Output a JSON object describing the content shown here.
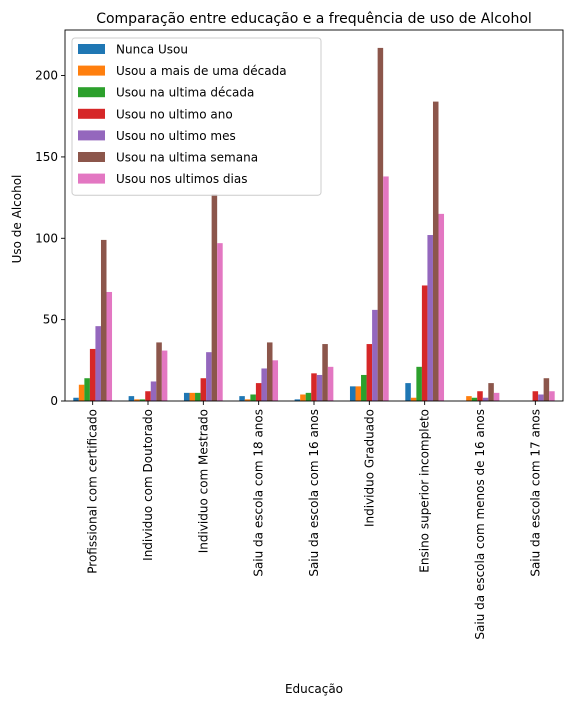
{
  "chart_data": {
    "type": "bar",
    "title": "Comparação entre educação e a frequência de uso de Alcohol",
    "xlabel": "Educação",
    "ylabel": "Uso de Alcohol",
    "ylim": [
      0,
      228
    ],
    "yticks": [
      0,
      50,
      100,
      150,
      200
    ],
    "grid": false,
    "legend_position": "top-left",
    "categories": [
      "Profissional com certificado",
      "Individuo com Doutorado",
      "Individuo com Mestrado",
      "Saiu da escola com 18 anos",
      "Saiu da escola com 16 anos",
      "Individuo Graduado",
      "Ensino superior incompleto",
      "Saiu da escola com menos de 16 anos",
      "Saiu da escola com 17 anos"
    ],
    "series": [
      {
        "name": "Nunca Usou",
        "color": "#1f77b4",
        "values": [
          2,
          3,
          5,
          3,
          1,
          9,
          11,
          0,
          0
        ]
      },
      {
        "name": "Usou a mais de uma década",
        "color": "#ff7f0e",
        "values": [
          10,
          1,
          5,
          1,
          4,
          9,
          2,
          3,
          0
        ]
      },
      {
        "name": "Usou na ultima década",
        "color": "#2ca02c",
        "values": [
          14,
          1,
          5,
          4,
          5,
          16,
          21,
          2,
          0
        ]
      },
      {
        "name": "Usou no ultimo ano",
        "color": "#d62728",
        "values": [
          32,
          6,
          14,
          11,
          17,
          35,
          71,
          6,
          6
        ]
      },
      {
        "name": "Usou no ultimo mes",
        "color": "#9467bd",
        "values": [
          46,
          12,
          30,
          20,
          16,
          56,
          102,
          2,
          4
        ]
      },
      {
        "name": "Usou na ultima semana",
        "color": "#8c564b",
        "values": [
          99,
          36,
          127,
          36,
          35,
          217,
          184,
          11,
          14
        ]
      },
      {
        "name": "Usou nos ultimos dias",
        "color": "#e377c2",
        "values": [
          67,
          31,
          97,
          25,
          21,
          138,
          115,
          5,
          6
        ]
      }
    ]
  }
}
